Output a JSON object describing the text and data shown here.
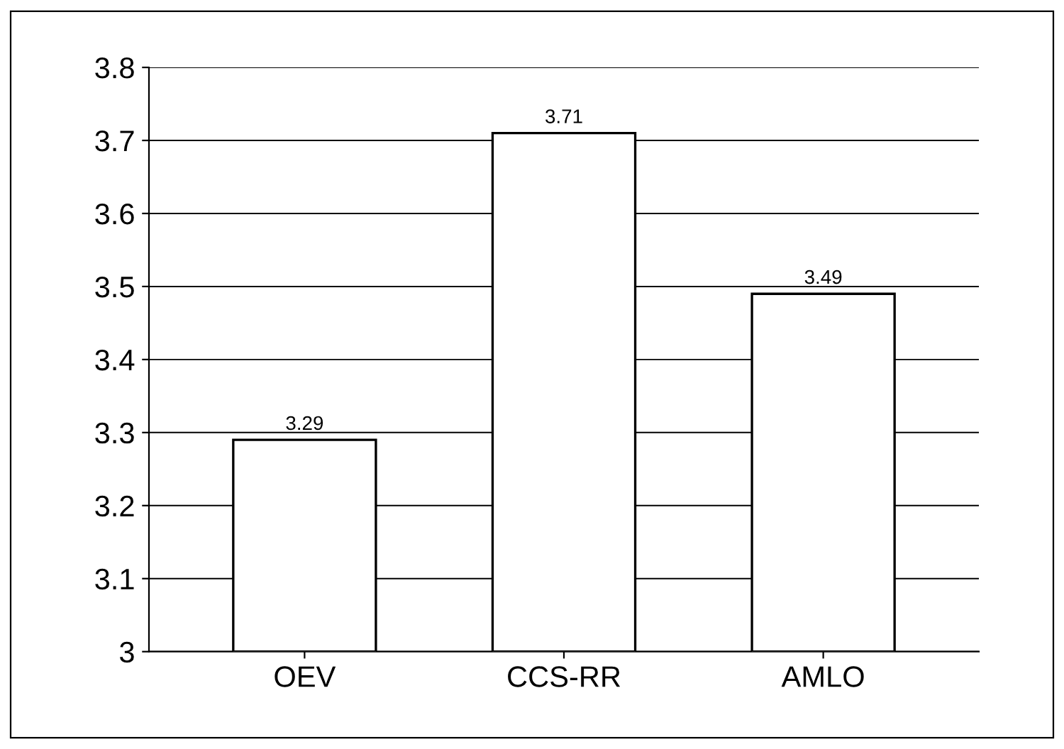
{
  "chart_data": {
    "type": "bar",
    "categories": [
      "OEV",
      "CCS-RR",
      "AMLO"
    ],
    "values": [
      3.29,
      3.71,
      3.49
    ],
    "color": "#ffffff",
    "ylim": [
      3,
      3.8
    ],
    "yticks": [
      3,
      3.1,
      3.2,
      3.3,
      3.4,
      3.5,
      3.6,
      3.7,
      3.8
    ],
    "grid": "y",
    "data_labels": true
  }
}
